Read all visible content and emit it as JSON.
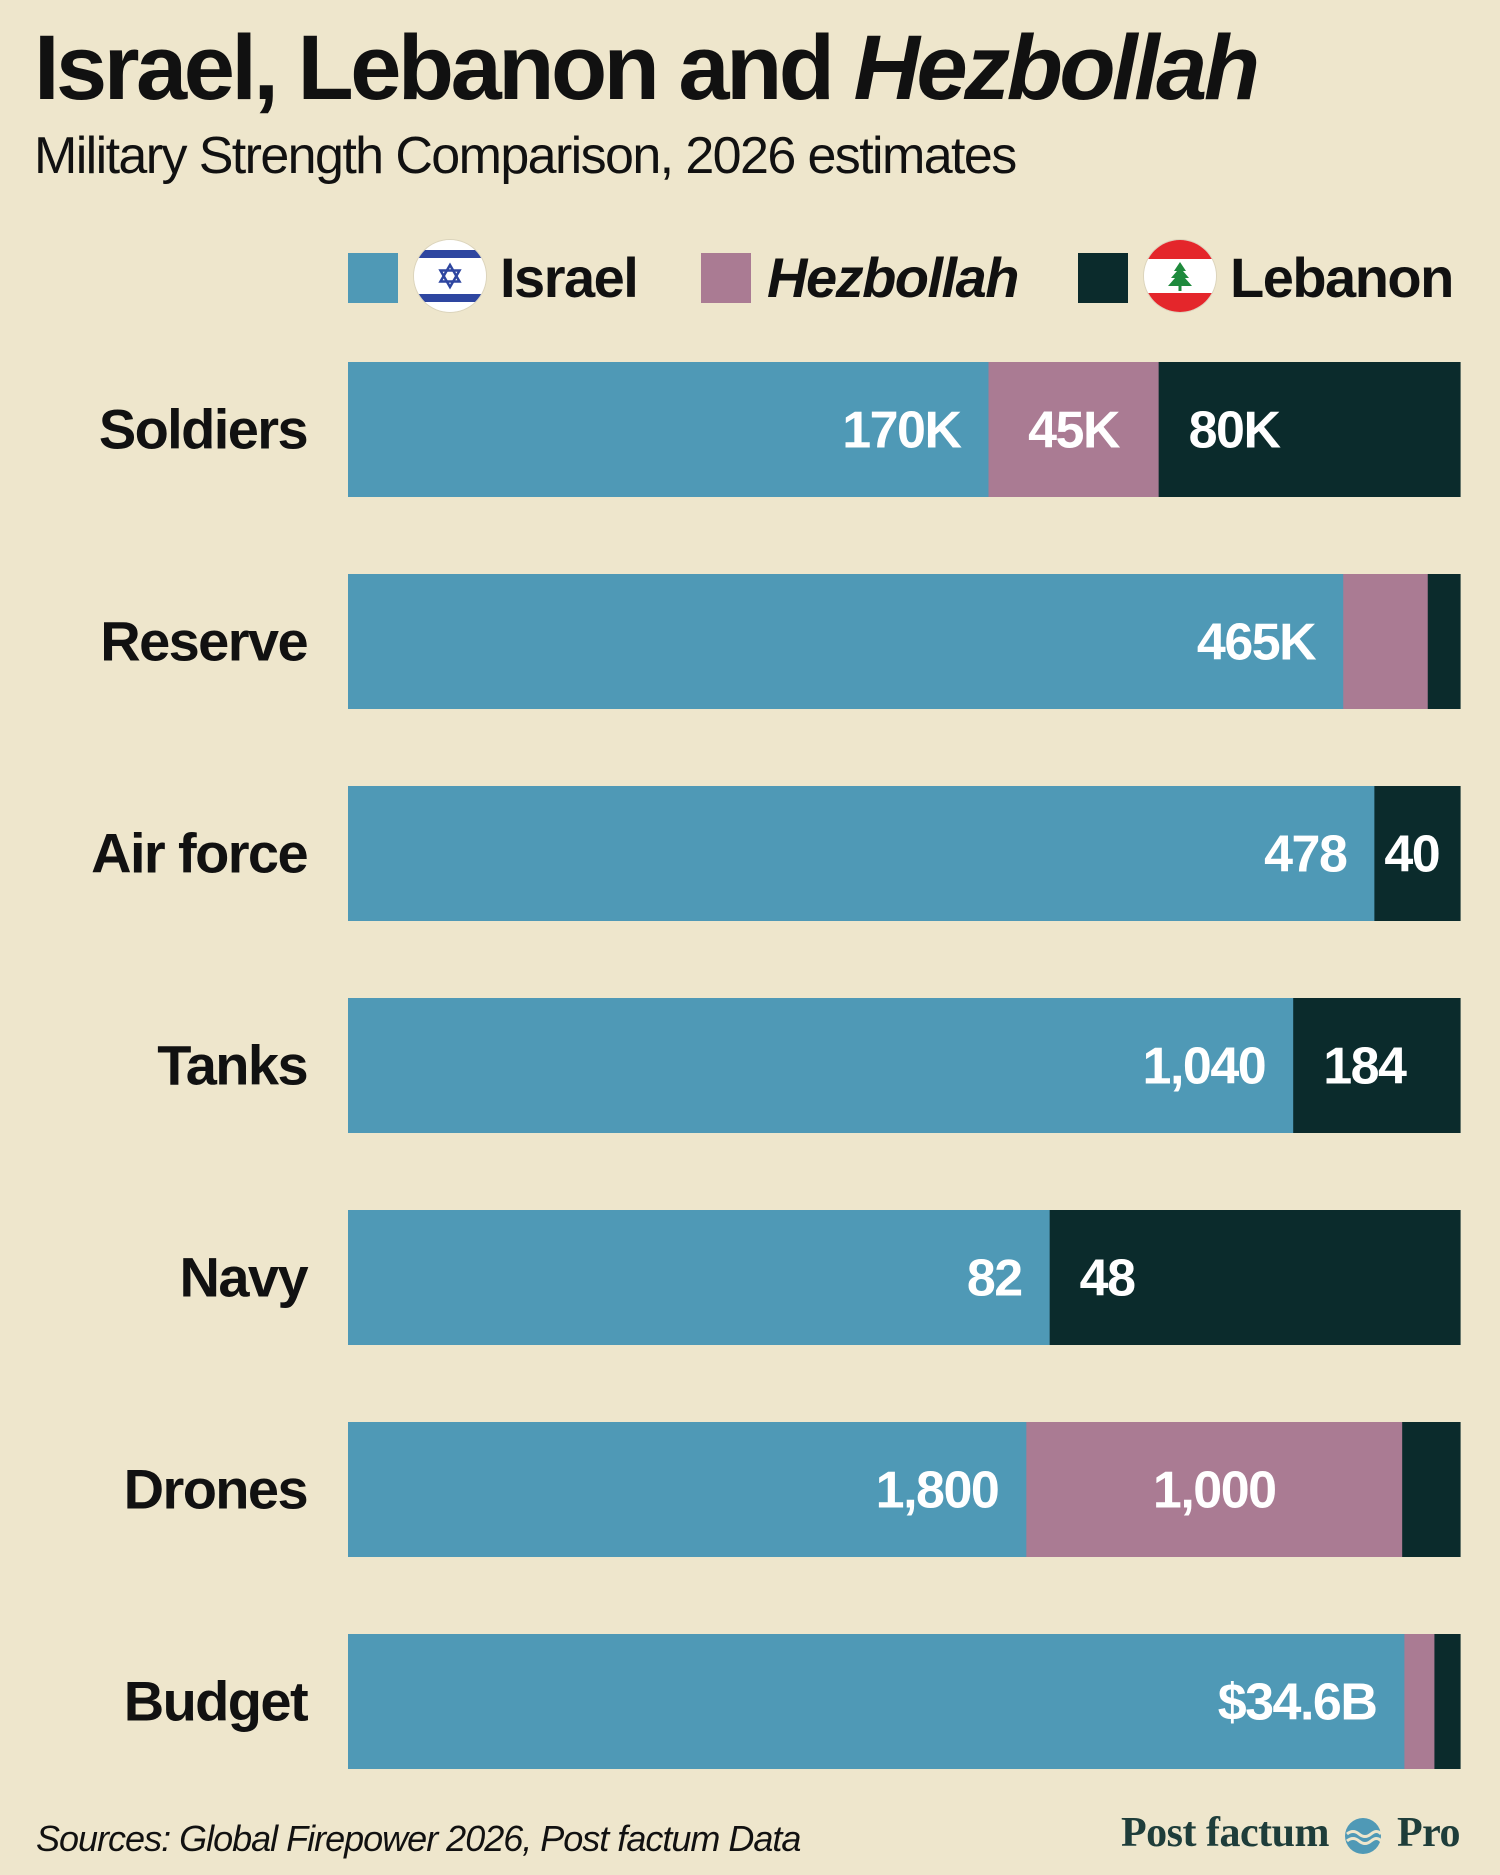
{
  "title": {
    "part1": "Israel, Lebanon and ",
    "part2": "Hezbollah"
  },
  "subtitle": "Military Strength Comparison, 2026 estimates",
  "colors": {
    "background": "#EEE6CC",
    "israel": "#4F99B6",
    "hezbollah": "#AA7B93",
    "lebanon": "#0B2B2C",
    "text": "#111111",
    "label_on_bar": "#FFFFFF"
  },
  "legend": [
    {
      "key": "israel",
      "label": "Israel",
      "flag_icon": "israel-flag-icon",
      "italic": false
    },
    {
      "key": "hezbollah",
      "label": "Hezbollah",
      "flag_icon": null,
      "italic": true
    },
    {
      "key": "lebanon",
      "label": "Lebanon",
      "flag_icon": "lebanon-flag-icon",
      "italic": false
    }
  ],
  "chart_data": {
    "type": "bar",
    "orientation": "horizontal",
    "stacked": true,
    "normalized_to_percent": true,
    "title": "Israel, Lebanon and Hezbollah",
    "subtitle": "Military Strength Comparison, 2026 estimates",
    "legend_position": "top-right",
    "categories": [
      "Soldiers",
      "Reserve",
      "Air force",
      "Tanks",
      "Navy",
      "Drones",
      "Budget"
    ],
    "series": [
      {
        "name": "Israel",
        "key": "israel",
        "share_percent": [
          57.6,
          89.5,
          92.3,
          85.0,
          63.1,
          61.0,
          95.0
        ],
        "labels": [
          "170K",
          "465K",
          "478",
          "1,040",
          "82",
          "1,800",
          "$34.6B"
        ]
      },
      {
        "name": "Hezbollah",
        "key": "hezbollah",
        "share_percent": [
          15.3,
          7.6,
          0,
          0,
          0,
          33.8,
          2.7
        ],
        "labels": [
          "45K",
          "",
          "",
          "",
          "",
          "1,000",
          ""
        ]
      },
      {
        "name": "Lebanon",
        "key": "lebanon",
        "share_percent": [
          27.1,
          2.9,
          7.7,
          15.0,
          36.9,
          5.2,
          2.3
        ],
        "labels": [
          "80K",
          "",
          "40",
          "184",
          "48",
          "",
          ""
        ]
      }
    ],
    "xlim": [
      0,
      100
    ],
    "grid": false,
    "xlabel": "",
    "ylabel": ""
  },
  "footer": {
    "source": "Sources: Global Firepower 2026, Post factum Data",
    "brand_left": "Post factum",
    "brand_right": "Pro"
  }
}
